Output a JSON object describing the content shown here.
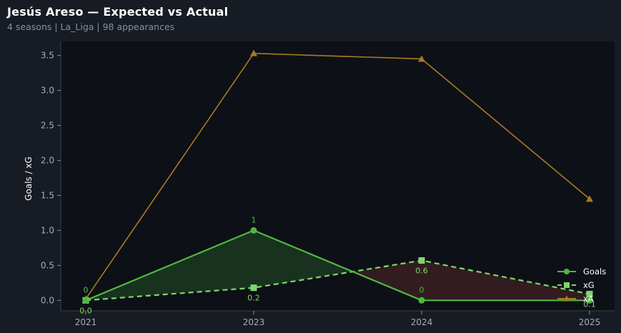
{
  "header": {
    "title": "Jesús Areso — Expected vs Actual",
    "subtitle": "4 seasons | La_Liga | 98 appearances"
  },
  "colors": {
    "background": "#171b23",
    "plot_bg": "#0d1017",
    "goals": "#4fb840",
    "xg": "#7fd66b",
    "xa": "#a87b20",
    "fill_over": "#1a3520",
    "fill_under": "#351d20"
  },
  "chart_data": {
    "type": "line",
    "categories": [
      "2021",
      "2023",
      "2024",
      "2025"
    ],
    "ylabel": "Goals / xG",
    "ylim": [
      -0.15,
      3.7
    ],
    "yticks": [
      "0.0",
      "0.5",
      "1.0",
      "1.5",
      "2.0",
      "2.5",
      "3.0",
      "3.5"
    ],
    "grid": false,
    "legend_position": "bottom-right",
    "series": [
      {
        "name": "Goals",
        "values": [
          0,
          1,
          0,
          0
        ],
        "labels": [
          "0",
          "1",
          "0",
          ""
        ],
        "marker": "circle",
        "style": "solid"
      },
      {
        "name": "xG",
        "values": [
          0.0,
          0.18,
          0.57,
          0.09
        ],
        "labels": [
          "0.0",
          "0.2",
          "0.6",
          "0.1"
        ],
        "marker": "square",
        "style": "dashed"
      },
      {
        "name": "xA",
        "values": [
          0.02,
          3.53,
          3.45,
          1.45
        ],
        "marker": "triangle",
        "style": "solid"
      }
    ]
  }
}
